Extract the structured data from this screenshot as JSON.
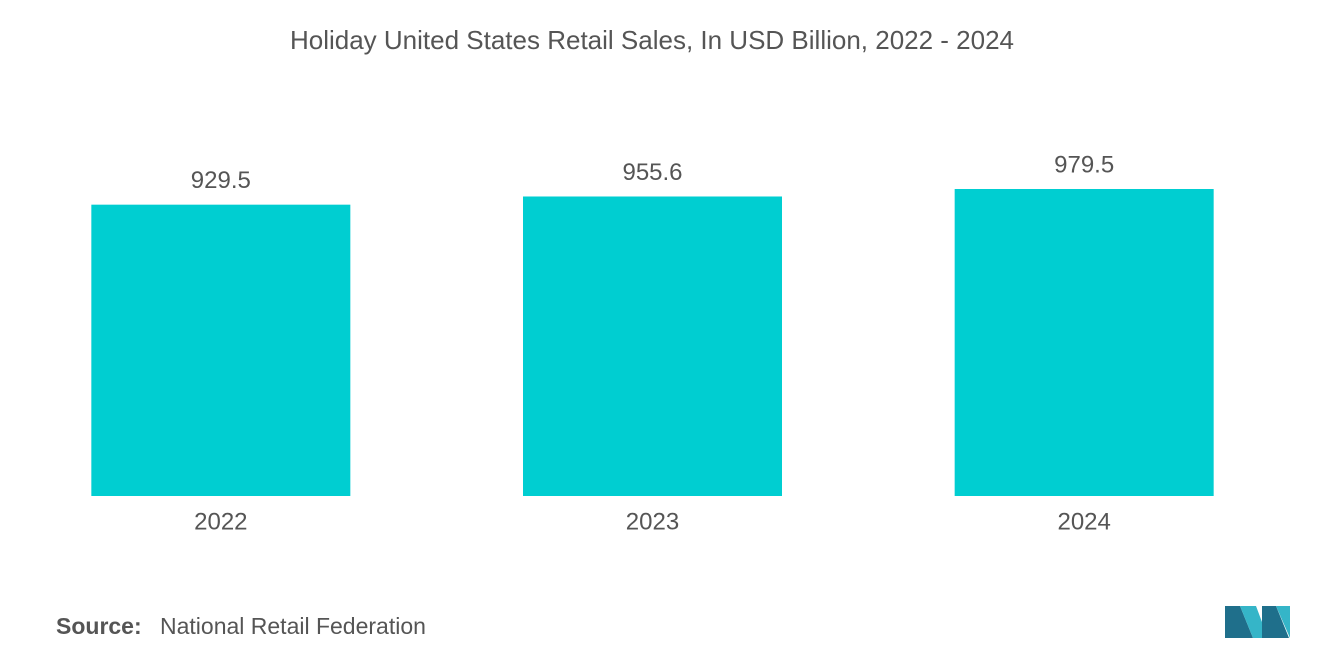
{
  "chart_data": {
    "type": "bar",
    "title": "Holiday United States Retail Sales, In USD Billion, 2022 - 2024",
    "categories": [
      "2022",
      "2023",
      "2024"
    ],
    "values": [
      929.5,
      955.6,
      979.5
    ],
    "color": "#00ced1",
    "source_label": "Source:",
    "source": "National Retail Federation"
  }
}
